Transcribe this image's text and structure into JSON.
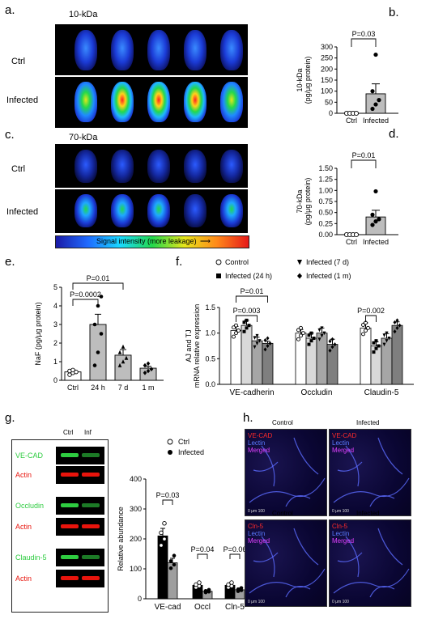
{
  "panels": {
    "a": {
      "label": "a.",
      "title": "10-kDa",
      "rows": [
        "Ctrl",
        "Infected"
      ]
    },
    "c": {
      "label": "c.",
      "title": "70-kDa",
      "rows": [
        "Ctrl",
        "Infected"
      ],
      "colorbar": "Signal intensity (more leakage)"
    },
    "g": {
      "label": "g.",
      "lanes": [
        "Ctrl",
        "Inf"
      ],
      "blots": [
        {
          "target": "VE-CAD",
          "target_color": "#2ecc40",
          "loading": "Actin",
          "loading_color": "#e8140c"
        },
        {
          "target": "Occludin",
          "target_color": "#2ecc40",
          "loading": "Actin",
          "loading_color": "#e8140c"
        },
        {
          "target": "Claudin-5",
          "target_color": "#2ecc40",
          "loading": "Actin",
          "loading_color": "#e8140c"
        }
      ]
    },
    "h": {
      "label": "h.",
      "images": [
        {
          "title": "Control",
          "legend": [
            "VE-CAD",
            "Lectin",
            "Merged"
          ]
        },
        {
          "title": "Infected",
          "legend": [
            "VE-CAD",
            "Lectin",
            "Merged"
          ]
        },
        {
          "title": "Control",
          "legend": [
            "Cln-5",
            "Lectin",
            "Merged"
          ]
        },
        {
          "title": "Infected",
          "legend": [
            "Cln-5",
            "Lectin",
            "Merged"
          ]
        }
      ],
      "legend_colors": [
        "#ff2a2a",
        "#5b7bff",
        "#e040ff"
      ],
      "scale_text": "0 μm 100"
    }
  },
  "colors": {
    "filled_bar": "#bdbdbd",
    "dark_bar": "#555555",
    "point": "#000000"
  },
  "chart_data": [
    {
      "id": "b",
      "label": "b.",
      "type": "bar",
      "categories": [
        "Ctrl",
        "Infected"
      ],
      "values": [
        0,
        88
      ],
      "errors": [
        0,
        45
      ],
      "points": [
        [
          0,
          0,
          0,
          0
        ],
        [
          20,
          40,
          60,
          100,
          265
        ]
      ],
      "ylabel": "10-kDa\n(pg/μg protein)",
      "ylim": [
        0,
        300
      ],
      "yticks": [
        "0",
        "50",
        "100",
        "150",
        "200",
        "250",
        "300"
      ],
      "annotations": [
        {
          "text": "P=0.03",
          "between": [
            0,
            1
          ]
        }
      ]
    },
    {
      "id": "d",
      "label": "d.",
      "type": "bar",
      "categories": [
        "Ctrl",
        "Infected"
      ],
      "values": [
        0,
        0.4
      ],
      "errors": [
        0,
        0.15
      ],
      "points": [
        [
          0,
          0,
          0,
          0
        ],
        [
          0.22,
          0.3,
          0.35,
          0.45,
          0.98
        ]
      ],
      "ylabel": "70-kDa\n(pg/μg protein)",
      "ylim": [
        0,
        1.5
      ],
      "yticks": [
        "0.00",
        "0.25",
        "0.50",
        "0.75",
        "1.00",
        "1.25",
        "1.50"
      ],
      "annotations": [
        {
          "text": "P=0.01",
          "between": [
            0,
            1
          ]
        }
      ]
    },
    {
      "id": "e",
      "label": "e.",
      "type": "bar",
      "categories": [
        "Ctrl",
        "24 h",
        "7 d",
        "1 m"
      ],
      "values": [
        0.45,
        3.0,
        1.35,
        0.65
      ],
      "errors": [
        0.1,
        0.55,
        0.3,
        0.1
      ],
      "fills": [
        "#ffffff",
        "#bdbdbd",
        "#bdbdbd",
        "#bdbdbd"
      ],
      "points": [
        [
          0.3,
          0.4,
          0.45,
          0.5,
          0.55
        ],
        [
          0.8,
          1.5,
          2.5,
          3.0,
          4.0,
          4.5
        ],
        [
          0.8,
          1.0,
          1.2,
          1.5,
          1.8
        ],
        [
          0.4,
          0.5,
          0.6,
          0.8,
          0.9
        ]
      ],
      "markers": [
        "circle-open",
        "circle",
        "triangle",
        "diamond"
      ],
      "ylabel": "NaF (pg/μg protein)",
      "ylim": [
        0,
        5
      ],
      "yticks": [
        "0",
        "1",
        "2",
        "3",
        "4",
        "5"
      ],
      "annotations": [
        {
          "text": "P=0.0002",
          "between": [
            0,
            1
          ]
        },
        {
          "text": "P=0.01",
          "between": [
            0,
            2
          ]
        }
      ]
    },
    {
      "id": "f",
      "label": "f.",
      "type": "bar",
      "categories": [
        "VE-cadherin",
        "Occludin",
        "Claudin-5"
      ],
      "series": [
        {
          "name": "Control",
          "marker": "circle-open",
          "fill": "#ffffff",
          "values": [
            1.05,
            1.0,
            1.1
          ],
          "errors": [
            0.08,
            0.07,
            0.1
          ]
        },
        {
          "name": "Infected (24 h)",
          "marker": "square",
          "fill": "#d9d9d9",
          "values": [
            1.15,
            0.9,
            0.75
          ],
          "errors": [
            0.1,
            0.1,
            0.08
          ]
        },
        {
          "name": "Infected (7 d)",
          "marker": "triangle-down",
          "fill": "#a6a6a6",
          "values": [
            0.85,
            1.0,
            0.9
          ],
          "errors": [
            0.07,
            0.1,
            0.09
          ]
        },
        {
          "name": "Infected (1 m)",
          "marker": "diamond",
          "fill": "#7f7f7f",
          "values": [
            0.8,
            0.78,
            1.15
          ],
          "errors": [
            0.04,
            0.1,
            0.07
          ]
        }
      ],
      "ylabel": "AJ and TJ\nmRNA relative expression",
      "ylim": [
        0,
        1.5
      ],
      "yticks": [
        "0.0",
        "0.5",
        "1.0",
        "1.5"
      ],
      "annotations": [
        {
          "text": "P=0.01",
          "group": 0,
          "between": [
            0,
            3
          ]
        },
        {
          "text": "P=0.003",
          "group": 0,
          "between": [
            0,
            2
          ]
        },
        {
          "text": "P=0.002",
          "group": 2,
          "between": [
            0,
            1
          ]
        }
      ]
    },
    {
      "id": "g",
      "type": "bar",
      "categories": [
        "VE-cad",
        "Occl",
        "Cln-5"
      ],
      "series": [
        {
          "name": "Ctrl",
          "marker": "circle-open",
          "fill": "#000000",
          "values": [
            210,
            45,
            45
          ],
          "errors": [
            25,
            5,
            8
          ]
        },
        {
          "name": "Infected",
          "marker": "circle",
          "fill": "#9e9e9e",
          "values": [
            120,
            25,
            30
          ],
          "errors": [
            15,
            4,
            6
          ]
        }
      ],
      "ylabel": "Relative abundance",
      "ylim": [
        0,
        400
      ],
      "yticks": [
        "0",
        "100",
        "200",
        "300",
        "400"
      ],
      "annotations": [
        {
          "text": "P=0.03",
          "group": 0
        },
        {
          "text": "P=0.04",
          "group": 1
        },
        {
          "text": "P=0.06",
          "group": 2
        }
      ]
    }
  ]
}
